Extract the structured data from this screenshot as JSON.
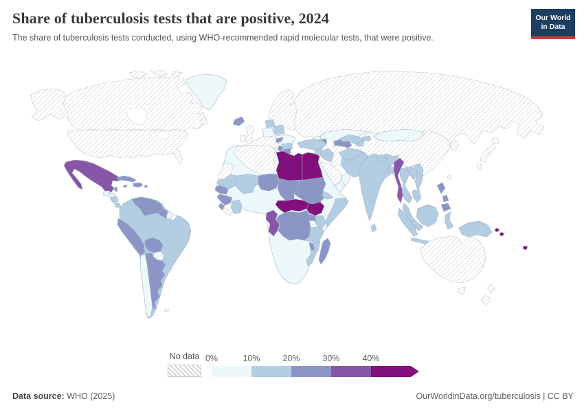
{
  "header": {
    "title": "Share of tuberculosis tests that are positive, 2024",
    "subtitle": "The share of tuberculosis tests conducted, using WHO-recommended rapid molecular tests, that were positive.",
    "logo_line1": "Our World",
    "logo_line2": "in Data"
  },
  "legend": {
    "no_data_label": "No data",
    "ticks": [
      "0%",
      "10%",
      "20%",
      "30%",
      "40%"
    ]
  },
  "footer": {
    "source_label": "Data source:",
    "source_value": " WHO (2025)",
    "citation": "OurWorldinData.org/tuberculosis | CC BY"
  },
  "colors": {
    "logo_bg": "#1d3d63",
    "logo_accent": "#d73c34",
    "border": "#9fadbb",
    "no_data_line": "#c9c9c9"
  },
  "chart_data": {
    "type": "heatmap",
    "subtype": "world choropleth map",
    "title": "Share of tuberculosis tests that are positive, 2024",
    "year": 2024,
    "unit": "%",
    "legend_position": "bottom",
    "bins": [
      {
        "label": "0%-10%",
        "color": "#edf8fb"
      },
      {
        "label": "10%-20%",
        "color": "#b3cde3"
      },
      {
        "label": "20%-30%",
        "color": "#8c96c6"
      },
      {
        "label": "30%-40%",
        "color": "#8856a7"
      },
      {
        "label": "40%+",
        "color": "#810f7c"
      }
    ],
    "countries": {
      "Greenland": 0,
      "Kazakhstan": 0,
      "Mongolia": 0,
      "Ukraine": 0,
      "Poland": 0,
      "Morocco": 0,
      "Tunisia": 0,
      "Jordan": 0,
      "Yemen": 0,
      "Oman": 0,
      "Georgia": 0,
      "Guatemala": 0,
      "Honduras": 0,
      "Suriname": 0,
      "Chile": 0,
      "Paraguay": 0,
      "Burkina Faso": 0,
      "Ghana": 0,
      "Nigeria": 0,
      "Ethiopia": 0,
      "Angola": 0,
      "Zambia": 0,
      "Zimbabwe": 0,
      "Namibia": 0,
      "Botswana": 0,
      "South Africa": 0,
      "Brazil": 1,
      "Colombia": 1,
      "Ecuador": 1,
      "Uruguay": 1,
      "Nicaragua": 1,
      "Costa Rica": 1,
      "Panama": 1,
      "Mali": 1,
      "Mauritania": 1,
      "Cote d'Ivoire": 1,
      "Eritrea": 1,
      "Somalia": 1,
      "Kenya": 1,
      "Tanzania": 1,
      "Mozambique": 1,
      "Turkey": 1,
      "Syria": 1,
      "Iraq": 1,
      "Uzbekistan": 1,
      "Kyrgyzstan": 1,
      "Tajikistan": 1,
      "Afghanistan": 1,
      "Pakistan": 1,
      "India": 1,
      "Nepal": 1,
      "Bangladesh": 1,
      "Sri Lanka": 1,
      "Thailand": 1,
      "Laos": 1,
      "Vietnam": 1,
      "Cambodia": 1,
      "Malaysia": 1,
      "Indonesia": 1,
      "Papua New Guinea": 1,
      "Belarus": 1,
      "Romania": 1,
      "Lithuania": 1,
      "Latvia": 1,
      "Venezuela": 2,
      "Peru": 2,
      "Bolivia": 2,
      "Argentina": 2,
      "Guyana": 2,
      "Cuba": 2,
      "Haiti": 2,
      "Dominican Republic": 2,
      "Jamaica": 2,
      "Belize": 2,
      "Iceland": 2,
      "Bulgaria": 2,
      "Serbia": 2,
      "Albania": 2,
      "Slovakia": 2,
      "Azerbaijan": 2,
      "Turkmenistan": 2,
      "Senegal": 2,
      "Guinea": 2,
      "Sierra Leone": 2,
      "Niger": 2,
      "Chad": 2,
      "Sudan": 2,
      "Uganda": 2,
      "Democratic Republic of Congo": 2,
      "Malawi": 2,
      "Madagascar": 2,
      "Philippines": 2,
      "Trinidad and Tobago": 2,
      "Mexico": 3,
      "Myanmar": 3,
      "Cameroon": 3,
      "Gabon": 3,
      "Republic of Congo": 3,
      "Equatorial Guinea": 3,
      "Libya": 4,
      "Egypt": 4,
      "Central African Republic": 4,
      "South Sudan": 4,
      "Palestine": 4,
      "Solomon Islands": 4,
      "Fiji": 4
    },
    "no_data": [
      "United States",
      "Canada",
      "Russia",
      "China",
      "Iran",
      "Saudi Arabia",
      "Algeria",
      "Western Sahara",
      "Liberia",
      "Australia",
      "New Zealand",
      "Japan",
      "South Korea",
      "North Korea",
      "United Kingdom",
      "Ireland",
      "France",
      "Germany",
      "Spain",
      "Portugal",
      "Italy",
      "Norway",
      "Sweden",
      "Finland",
      "Denmark",
      "Greece",
      "French Guiana"
    ]
  }
}
